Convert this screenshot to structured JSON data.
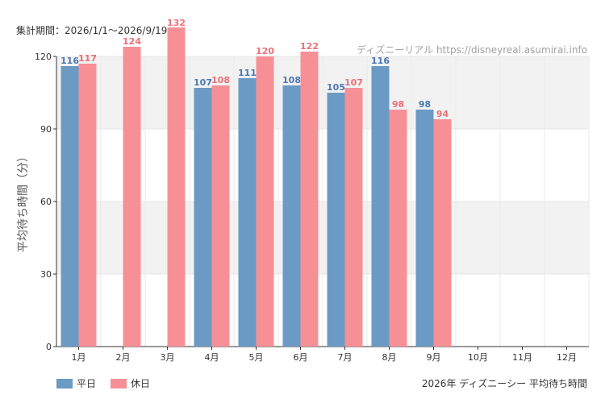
{
  "header": {
    "period_text": "集計期間：2026/1/1～2026/9/19",
    "watermark": "ディズニーリアル https://disneyreal.asumirai.info"
  },
  "footer": {
    "title": "2026年 ディズニーシー 平均待ち時間"
  },
  "colors": {
    "weekday": "#6b9ac4",
    "holiday": "#f79096",
    "weekday_label": "#4a78b0",
    "holiday_label": "#ee6f77",
    "band": "#f2f2f2"
  },
  "chart_data": {
    "type": "bar",
    "categories": [
      "1月",
      "2月",
      "3月",
      "4月",
      "5月",
      "6月",
      "7月",
      "8月",
      "9月",
      "10月",
      "11月",
      "12月"
    ],
    "series": [
      {
        "name": "平日",
        "values": [
          116,
          null,
          null,
          107,
          111,
          108,
          105,
          116,
          98,
          null,
          null,
          null
        ],
        "labels": [
          "116",
          "",
          "",
          "107",
          "111",
          "108",
          "105",
          "116",
          "98",
          "",
          "",
          ""
        ]
      },
      {
        "name": "休日",
        "values": [
          117,
          124,
          132,
          108,
          120,
          122,
          107,
          98,
          94,
          null,
          null,
          null
        ],
        "labels": [
          "117",
          "124",
          "132",
          "108",
          "120",
          "122",
          "107",
          "98",
          "94",
          "",
          "",
          ""
        ]
      }
    ],
    "ylabel": "平均待ち時間（分）",
    "ylim": [
      0,
      120
    ],
    "yticks": [
      0,
      30,
      60,
      90,
      120
    ],
    "legend_position": "bottom-left",
    "grid": true
  }
}
